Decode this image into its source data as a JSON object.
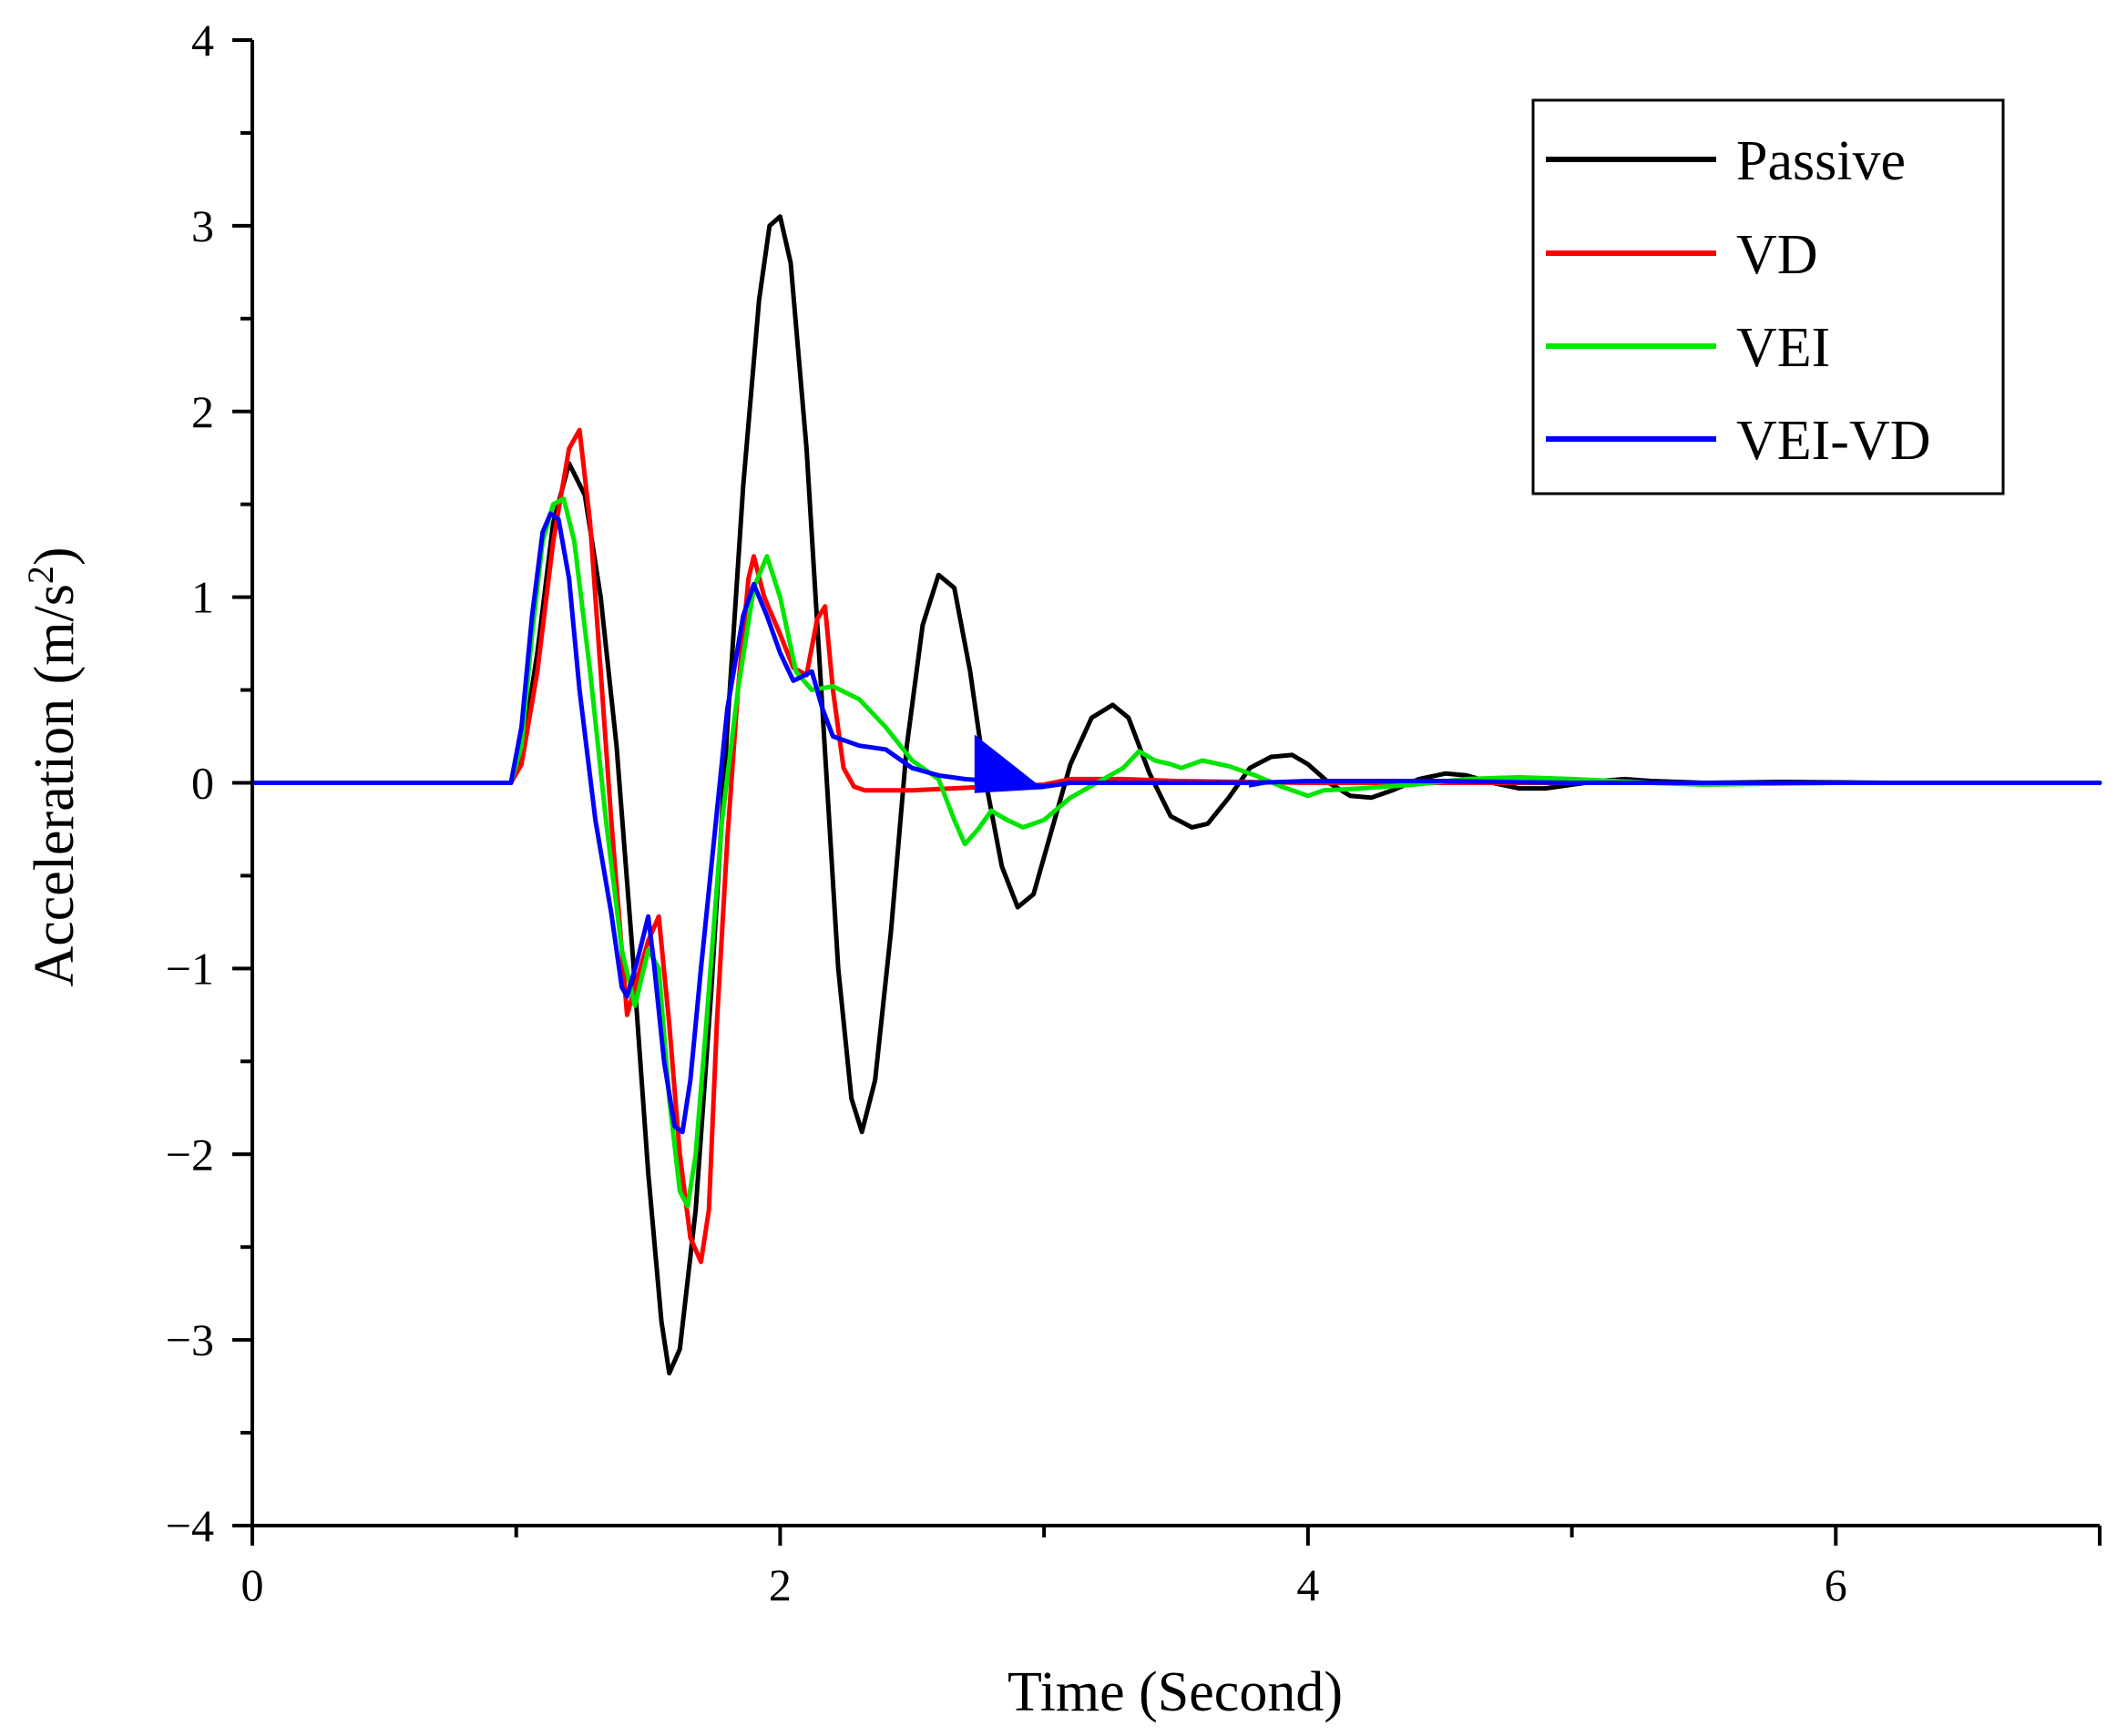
{
  "chart_data": {
    "type": "line",
    "title": "",
    "xlabel": "Time (Second)",
    "ylabel_main": "Acceleration (m/s",
    "ylabel_sup": "2",
    "ylabel_tail": ")",
    "xlim": [
      0,
      7
    ],
    "ylim": [
      -4,
      4
    ],
    "xticks": [
      0,
      2,
      4,
      6
    ],
    "xtick_labels": [
      "0",
      "2",
      "4",
      "6"
    ],
    "x_minor_ticks": [
      1,
      3,
      5
    ],
    "yticks": [
      -4,
      -3,
      -2,
      -1,
      0,
      1,
      2,
      3,
      4
    ],
    "ytick_labels": [
      "−4",
      "−3",
      "−2",
      "−1",
      "0",
      "1",
      "2",
      "3",
      "4"
    ],
    "y_minor_ticks": [
      -3.5,
      -2.5,
      -1.5,
      -0.5,
      0.5,
      1.5,
      2.5,
      3.5
    ],
    "grid": false,
    "legend_position": "top-right",
    "series": [
      {
        "name": "Passive",
        "color": "#000000",
        "points": [
          [
            0,
            0
          ],
          [
            0.98,
            0
          ],
          [
            1.02,
            0.15
          ],
          [
            1.08,
            0.7
          ],
          [
            1.14,
            1.4
          ],
          [
            1.2,
            1.72
          ],
          [
            1.26,
            1.55
          ],
          [
            1.32,
            1.0
          ],
          [
            1.38,
            0.2
          ],
          [
            1.44,
            -0.9
          ],
          [
            1.5,
            -2.1
          ],
          [
            1.55,
            -2.9
          ],
          [
            1.58,
            -3.18
          ],
          [
            1.62,
            -3.05
          ],
          [
            1.68,
            -2.3
          ],
          [
            1.74,
            -1.1
          ],
          [
            1.8,
            0.3
          ],
          [
            1.86,
            1.6
          ],
          [
            1.92,
            2.6
          ],
          [
            1.96,
            3.0
          ],
          [
            2.0,
            3.05
          ],
          [
            2.04,
            2.8
          ],
          [
            2.1,
            1.8
          ],
          [
            2.16,
            0.4
          ],
          [
            2.22,
            -1.0
          ],
          [
            2.27,
            -1.7
          ],
          [
            2.31,
            -1.88
          ],
          [
            2.36,
            -1.6
          ],
          [
            2.42,
            -0.8
          ],
          [
            2.48,
            0.2
          ],
          [
            2.54,
            0.85
          ],
          [
            2.6,
            1.12
          ],
          [
            2.66,
            1.05
          ],
          [
            2.72,
            0.6
          ],
          [
            2.78,
            0.0
          ],
          [
            2.84,
            -0.45
          ],
          [
            2.9,
            -0.67
          ],
          [
            2.96,
            -0.6
          ],
          [
            3.02,
            -0.3
          ],
          [
            3.1,
            0.1
          ],
          [
            3.18,
            0.35
          ],
          [
            3.26,
            0.42
          ],
          [
            3.32,
            0.35
          ],
          [
            3.4,
            0.05
          ],
          [
            3.48,
            -0.18
          ],
          [
            3.56,
            -0.24
          ],
          [
            3.62,
            -0.22
          ],
          [
            3.7,
            -0.08
          ],
          [
            3.78,
            0.08
          ],
          [
            3.86,
            0.14
          ],
          [
            3.94,
            0.15
          ],
          [
            4.0,
            0.1
          ],
          [
            4.08,
            0.0
          ],
          [
            4.16,
            -0.07
          ],
          [
            4.24,
            -0.08
          ],
          [
            4.32,
            -0.04
          ],
          [
            4.42,
            0.02
          ],
          [
            4.52,
            0.05
          ],
          [
            4.6,
            0.04
          ],
          [
            4.7,
            0.0
          ],
          [
            4.8,
            -0.03
          ],
          [
            4.9,
            -0.03
          ],
          [
            5.0,
            -0.01
          ],
          [
            5.1,
            0.01
          ],
          [
            5.2,
            0.02
          ],
          [
            5.3,
            0.01
          ],
          [
            5.5,
            0.0
          ],
          [
            5.8,
            0.005
          ],
          [
            6.2,
            0.0
          ],
          [
            7.0,
            0.0
          ]
        ]
      },
      {
        "name": "VD",
        "color": "#ff0000",
        "points": [
          [
            0,
            0
          ],
          [
            0.98,
            0
          ],
          [
            1.02,
            0.1
          ],
          [
            1.08,
            0.6
          ],
          [
            1.14,
            1.3
          ],
          [
            1.2,
            1.8
          ],
          [
            1.24,
            1.9
          ],
          [
            1.28,
            1.4
          ],
          [
            1.32,
            0.6
          ],
          [
            1.36,
            -0.2
          ],
          [
            1.4,
            -0.9
          ],
          [
            1.42,
            -1.25
          ],
          [
            1.45,
            -1.1
          ],
          [
            1.5,
            -0.85
          ],
          [
            1.54,
            -0.72
          ],
          [
            1.58,
            -1.3
          ],
          [
            1.62,
            -2.0
          ],
          [
            1.66,
            -2.45
          ],
          [
            1.7,
            -2.58
          ],
          [
            1.73,
            -2.3
          ],
          [
            1.76,
            -1.3
          ],
          [
            1.8,
            -0.3
          ],
          [
            1.84,
            0.5
          ],
          [
            1.88,
            1.1
          ],
          [
            1.9,
            1.22
          ],
          [
            1.94,
            1.0
          ],
          [
            2.0,
            0.8
          ],
          [
            2.05,
            0.62
          ],
          [
            2.1,
            0.58
          ],
          [
            2.14,
            0.88
          ],
          [
            2.17,
            0.95
          ],
          [
            2.2,
            0.5
          ],
          [
            2.24,
            0.08
          ],
          [
            2.28,
            -0.02
          ],
          [
            2.32,
            -0.04
          ],
          [
            2.5,
            -0.04
          ],
          [
            2.8,
            -0.02
          ],
          [
            3.0,
            -0.01
          ],
          [
            3.1,
            0.02
          ],
          [
            3.3,
            0.02
          ],
          [
            3.5,
            0.01
          ],
          [
            4.0,
            0.0
          ],
          [
            7.0,
            0.0
          ]
        ]
      },
      {
        "name": "VEI",
        "color": "#00e600",
        "points": [
          [
            0,
            0
          ],
          [
            0.98,
            0
          ],
          [
            1.02,
            0.2
          ],
          [
            1.06,
            0.8
          ],
          [
            1.1,
            1.3
          ],
          [
            1.14,
            1.5
          ],
          [
            1.18,
            1.53
          ],
          [
            1.22,
            1.3
          ],
          [
            1.28,
            0.6
          ],
          [
            1.34,
            -0.2
          ],
          [
            1.4,
            -0.9
          ],
          [
            1.45,
            -1.2
          ],
          [
            1.5,
            -0.9
          ],
          [
            1.54,
            -1.0
          ],
          [
            1.58,
            -1.7
          ],
          [
            1.62,
            -2.2
          ],
          [
            1.65,
            -2.28
          ],
          [
            1.68,
            -2.0
          ],
          [
            1.72,
            -1.3
          ],
          [
            1.78,
            -0.2
          ],
          [
            1.84,
            0.5
          ],
          [
            1.9,
            1.05
          ],
          [
            1.95,
            1.22
          ],
          [
            2.0,
            1.0
          ],
          [
            2.06,
            0.6
          ],
          [
            2.12,
            0.5
          ],
          [
            2.2,
            0.52
          ],
          [
            2.3,
            0.45
          ],
          [
            2.4,
            0.3
          ],
          [
            2.5,
            0.12
          ],
          [
            2.6,
            0.02
          ],
          [
            2.66,
            -0.2
          ],
          [
            2.7,
            -0.33
          ],
          [
            2.75,
            -0.25
          ],
          [
            2.8,
            -0.15
          ],
          [
            2.86,
            -0.2
          ],
          [
            2.92,
            -0.24
          ],
          [
            3.0,
            -0.2
          ],
          [
            3.1,
            -0.08
          ],
          [
            3.2,
            0.0
          ],
          [
            3.3,
            0.08
          ],
          [
            3.36,
            0.17
          ],
          [
            3.42,
            0.12
          ],
          [
            3.48,
            0.1
          ],
          [
            3.52,
            0.08
          ],
          [
            3.6,
            0.12
          ],
          [
            3.7,
            0.09
          ],
          [
            3.8,
            0.04
          ],
          [
            3.9,
            -0.02
          ],
          [
            4.0,
            -0.07
          ],
          [
            4.06,
            -0.04
          ],
          [
            4.2,
            -0.03
          ],
          [
            4.4,
            -0.01
          ],
          [
            4.6,
            0.02
          ],
          [
            4.8,
            0.03
          ],
          [
            5.0,
            0.02
          ],
          [
            5.3,
            0.0
          ],
          [
            5.5,
            -0.01
          ],
          [
            6.0,
            0.0
          ],
          [
            7.0,
            0.0
          ]
        ]
      },
      {
        "name": "VEI-VD",
        "color": "#0000ff",
        "points": [
          [
            0,
            0
          ],
          [
            0.98,
            0
          ],
          [
            1.02,
            0.3
          ],
          [
            1.06,
            0.9
          ],
          [
            1.1,
            1.35
          ],
          [
            1.13,
            1.45
          ],
          [
            1.16,
            1.42
          ],
          [
            1.2,
            1.1
          ],
          [
            1.24,
            0.5
          ],
          [
            1.3,
            -0.2
          ],
          [
            1.36,
            -0.7
          ],
          [
            1.4,
            -1.1
          ],
          [
            1.42,
            -1.15
          ],
          [
            1.46,
            -0.95
          ],
          [
            1.5,
            -0.72
          ],
          [
            1.52,
            -0.95
          ],
          [
            1.56,
            -1.5
          ],
          [
            1.6,
            -1.85
          ],
          [
            1.63,
            -1.88
          ],
          [
            1.66,
            -1.6
          ],
          [
            1.7,
            -1.0
          ],
          [
            1.75,
            -0.3
          ],
          [
            1.8,
            0.4
          ],
          [
            1.86,
            0.9
          ],
          [
            1.9,
            1.07
          ],
          [
            1.95,
            0.9
          ],
          [
            2.0,
            0.7
          ],
          [
            2.05,
            0.55
          ],
          [
            2.08,
            0.57
          ],
          [
            2.12,
            0.6
          ],
          [
            2.16,
            0.4
          ],
          [
            2.2,
            0.25
          ],
          [
            2.3,
            0.2
          ],
          [
            2.4,
            0.18
          ],
          [
            2.5,
            0.08
          ],
          [
            2.6,
            0.04
          ],
          [
            2.7,
            0.02
          ],
          [
            2.8,
            0.01
          ],
          [
            3.0,
            -0.02
          ],
          [
            3.1,
            0.0
          ],
          [
            3.4,
            0.0
          ],
          [
            3.8,
            0.0
          ],
          [
            4.0,
            0.01
          ],
          [
            4.5,
            0.01
          ],
          [
            5.0,
            0.0
          ],
          [
            7.0,
            0.0
          ]
        ]
      }
    ],
    "annotation_triangles": [
      {
        "color": "#0000ff",
        "points": [
          [
            2.74,
            0.25
          ],
          [
            2.74,
            -0.05
          ],
          [
            2.99,
            -0.03
          ]
        ]
      },
      {
        "color": "#0000ff",
        "points": [
          [
            3.78,
            0.01
          ],
          [
            3.78,
            -0.02
          ],
          [
            3.84,
            -0.005
          ]
        ]
      }
    ]
  }
}
